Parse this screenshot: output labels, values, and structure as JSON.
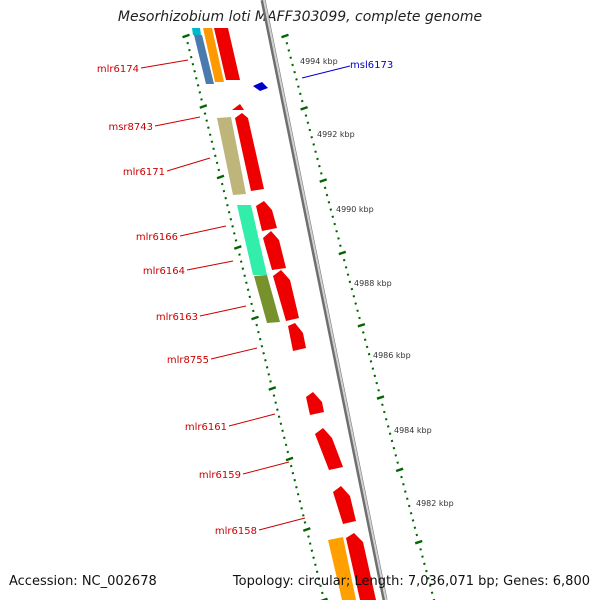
{
  "title": "Mesorhizobium loti MAFF303099, complete genome",
  "footer": {
    "accession": "Accession: NC_002678",
    "topology": "Topology: circular; Length: 7,036,071 bp; Genes: 6,800"
  },
  "colors": {
    "label_red": "#cc0000",
    "label_blue": "#0000cc",
    "gene_red": "#ee0000",
    "tick_green": "#006600",
    "backbone": "#999999"
  },
  "scale_labels": [
    "4994 kbp",
    "4992 kbp",
    "4990 kbp",
    "4988 kbp",
    "4986 kbp",
    "4984 kbp",
    "4982 kbp"
  ],
  "gene_labels": [
    {
      "name": "mlr6174",
      "strand": "minus"
    },
    {
      "name": "msl6173",
      "strand": "plus"
    },
    {
      "name": "msr8743",
      "strand": "minus"
    },
    {
      "name": "mlr6171",
      "strand": "minus"
    },
    {
      "name": "mlr6166",
      "strand": "minus"
    },
    {
      "name": "mlr6164",
      "strand": "minus"
    },
    {
      "name": "mlr6163",
      "strand": "minus"
    },
    {
      "name": "mlr8755",
      "strand": "minus"
    },
    {
      "name": "mlr6161",
      "strand": "minus"
    },
    {
      "name": "mlr6159",
      "strand": "minus"
    },
    {
      "name": "mlr6158",
      "strand": "minus"
    }
  ]
}
